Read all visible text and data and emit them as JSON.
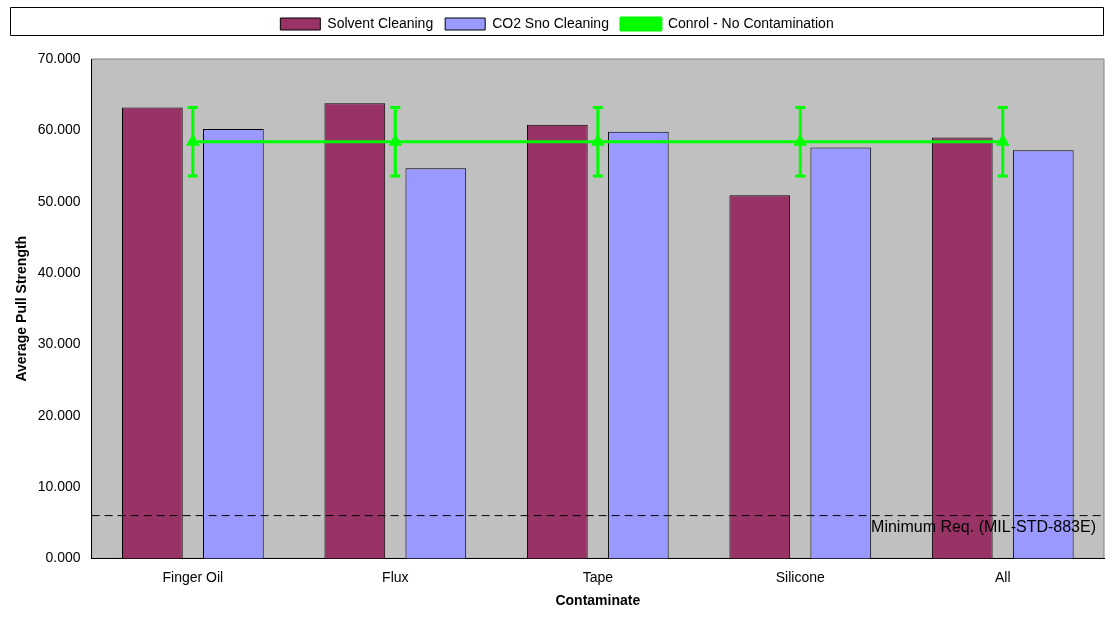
{
  "chart_data": {
    "type": "bar",
    "xlabel": "Contaminate",
    "ylabel": "Average Pull Strength",
    "categories": [
      "Finger Oil",
      "Flux",
      "Tape",
      "Silicone",
      "All"
    ],
    "series": [
      {
        "name": "Solvent Cleaning",
        "color": "#993366",
        "values": [
          63.2,
          63.8,
          60.8,
          50.9,
          59.0
        ]
      },
      {
        "name": "CO2 Sno Cleaning",
        "color": "#9999ff",
        "values": [
          60.2,
          54.7,
          59.8,
          57.6,
          57.2
        ]
      },
      {
        "name": "Conrol - No Contamination",
        "type": "line",
        "color": "#00ff00",
        "marker": "triangle",
        "values": [
          58.4,
          58.4,
          58.4,
          58.4,
          58.4
        ],
        "errors": [
          4.8,
          4.8,
          4.8,
          4.8,
          4.8
        ]
      }
    ],
    "ylim": [
      0,
      70
    ],
    "yticks": [
      {
        "value": 0,
        "label": "0.000"
      },
      {
        "value": 10,
        "label": "10.000"
      },
      {
        "value": 20,
        "label": "20.000"
      },
      {
        "value": 30,
        "label": "30.000"
      },
      {
        "value": 40,
        "label": "40.000"
      },
      {
        "value": 50,
        "label": "50.000"
      },
      {
        "value": 60,
        "label": "60.000"
      },
      {
        "value": 70,
        "label": "70.000"
      }
    ],
    "ref_lines": [
      {
        "axis": "y",
        "value": 6.0,
        "label": "Minimum Req. (MIL-STD-883E)",
        "color": "#000000",
        "line_style": "dashed"
      }
    ],
    "grid": false,
    "legend": "top"
  }
}
